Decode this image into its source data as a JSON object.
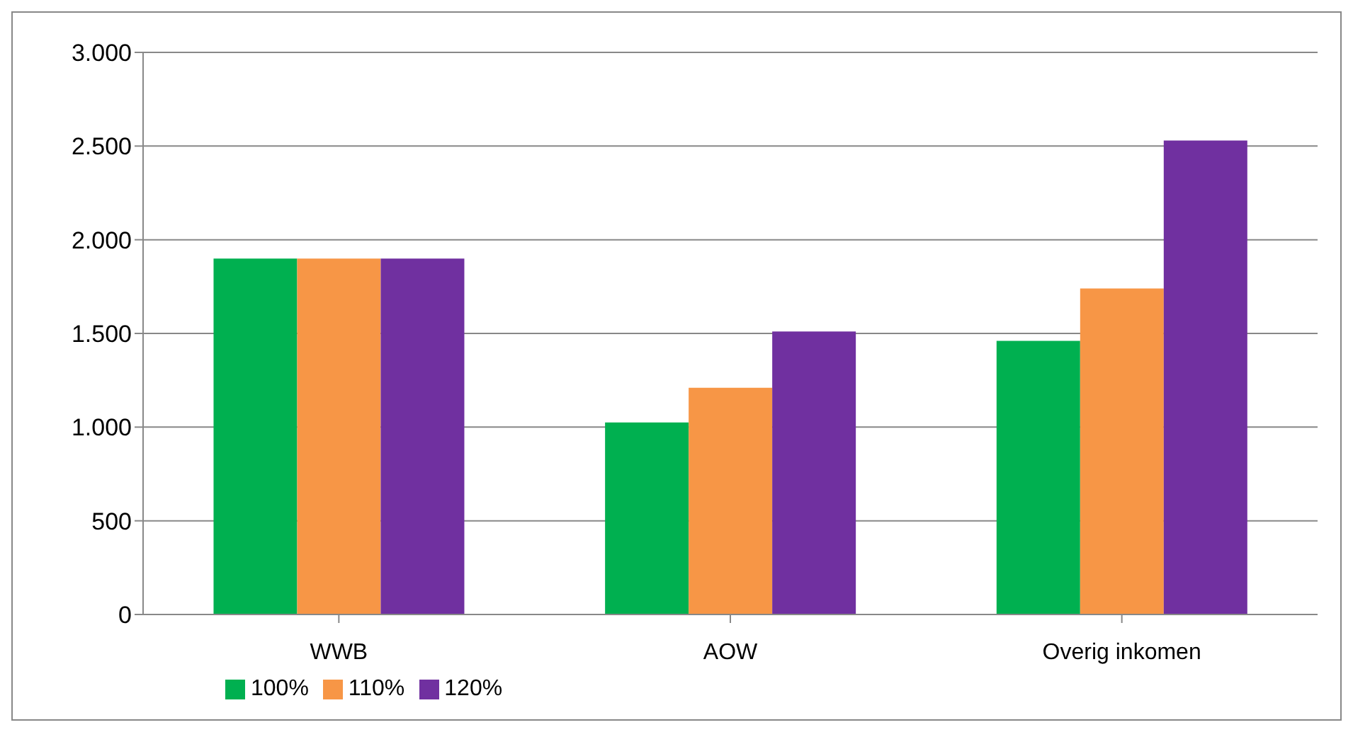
{
  "chart_data": {
    "type": "bar",
    "categories": [
      "WWB",
      "AOW",
      "Overig inkomen"
    ],
    "series": [
      {
        "name": "100%",
        "color": "#00b050",
        "values": [
          1900,
          1025,
          1460
        ]
      },
      {
        "name": "110%",
        "color": "#f79646",
        "values": [
          1900,
          1210,
          1740
        ]
      },
      {
        "name": "120%",
        "color": "#7030a0",
        "values": [
          1900,
          1510,
          2530
        ]
      }
    ],
    "ylim": [
      0,
      3000
    ],
    "yticks": [
      {
        "value": 0,
        "label": "0"
      },
      {
        "value": 500,
        "label": "500"
      },
      {
        "value": 1000,
        "label": "1.000"
      },
      {
        "value": 1500,
        "label": "1.500"
      },
      {
        "value": 2000,
        "label": "2.000"
      },
      {
        "value": 2500,
        "label": "2.500"
      },
      {
        "value": 3000,
        "label": "3.000"
      }
    ],
    "grid": "y",
    "legend": "bottom left"
  }
}
